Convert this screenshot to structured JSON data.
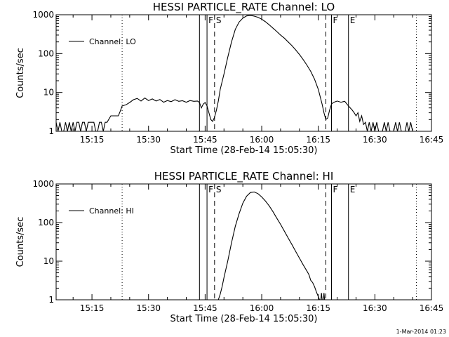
{
  "footer_timestamp": "1-Mar-2014 01:23",
  "chart_data": [
    {
      "type": "line",
      "title": "HESSI PARTICLE_RATE Channel: LO",
      "xlabel": "Start Time (28-Feb-14 15:05:30)",
      "ylabel": "Counts/sec",
      "yscale": "log",
      "xlim": [
        "15:05:30",
        "16:45:00"
      ],
      "ylim": [
        1,
        1000
      ],
      "x_tick_labels": [
        "15:15",
        "15:30",
        "15:45",
        "16:00",
        "16:15",
        "16:30",
        "16:45"
      ],
      "y_tick_labels": [
        "1",
        "10",
        "100",
        "1000"
      ],
      "legend": {
        "position": "top-left",
        "entries": [
          "Channel: LO"
        ]
      },
      "markers": [
        {
          "time": "15:23:00",
          "style": "dotted",
          "label": ""
        },
        {
          "time": "15:43:30",
          "style": "solid",
          "label": ""
        },
        {
          "time": "15:45:30",
          "style": "solid",
          "label": "F"
        },
        {
          "time": "15:47:30",
          "style": "dashed",
          "label": "S"
        },
        {
          "time": "16:17:00",
          "style": "dashed",
          "label": ""
        },
        {
          "time": "16:18:30",
          "style": "solid",
          "label": "F"
        },
        {
          "time": "16:23:00",
          "style": "solid",
          "label": "E"
        },
        {
          "time": "16:41:00",
          "style": "dotted",
          "label": ""
        }
      ],
      "series": [
        {
          "name": "Channel: LO",
          "segments": [
            [
              [
                "15:05:30",
                1.7
              ],
              [
                "15:06:00",
                1
              ],
              [
                "15:06:30",
                1.7
              ],
              [
                "15:07:00",
                1
              ],
              [
                "15:07:30",
                1
              ],
              [
                "15:08:00",
                1.7
              ],
              [
                "15:08:30",
                1
              ],
              [
                "15:09:00",
                1.7
              ],
              [
                "15:09:30",
                1
              ],
              [
                "15:10:00",
                1.7
              ],
              [
                "15:10:30",
                1
              ],
              [
                "15:11:00",
                1.7
              ],
              [
                "15:11:30",
                1.7
              ],
              [
                "15:12:00",
                1
              ],
              [
                "15:12:30",
                1.7
              ],
              [
                "15:13:00",
                1.7
              ],
              [
                "15:13:30",
                1
              ],
              [
                "15:14:00",
                1.7
              ],
              [
                "15:14:30",
                1.7
              ],
              [
                "15:15:00",
                1.7
              ],
              [
                "15:15:30",
                1.7
              ],
              [
                "15:16:00",
                1
              ],
              [
                "15:16:30",
                1
              ],
              [
                "15:17:00",
                1.7
              ],
              [
                "15:17:30",
                1.7
              ],
              [
                "15:18:00",
                1
              ],
              [
                "15:18:30",
                1.7
              ],
              [
                "15:19:00",
                1.7
              ],
              [
                "15:20:00",
                2.5
              ],
              [
                "15:21:00",
                2.5
              ],
              [
                "15:22:00",
                2.5
              ],
              [
                "15:22:30",
                3.3
              ],
              [
                "15:23:00",
                4.5
              ],
              [
                "15:24:00",
                4.8
              ],
              [
                "15:25:00",
                5.5
              ],
              [
                "15:26:00",
                6.5
              ],
              [
                "15:27:00",
                7
              ],
              [
                "15:28:00",
                6
              ],
              [
                "15:29:00",
                7.2
              ],
              [
                "15:30:00",
                6.2
              ],
              [
                "15:31:00",
                6.8
              ],
              [
                "15:32:00",
                6
              ],
              [
                "15:33:00",
                6.6
              ],
              [
                "15:34:00",
                5.6
              ],
              [
                "15:35:00",
                6.2
              ],
              [
                "15:36:00",
                5.8
              ],
              [
                "15:37:00",
                6.5
              ],
              [
                "15:38:00",
                5.9
              ],
              [
                "15:39:00",
                6.1
              ],
              [
                "15:40:00",
                5.6
              ],
              [
                "15:41:00",
                6.2
              ],
              [
                "15:42:00",
                5.9
              ],
              [
                "15:43:00",
                6
              ],
              [
                "15:43:30",
                5.5
              ],
              [
                "15:44:00",
                4
              ],
              [
                "15:44:30",
                5
              ],
              [
                "15:45:00",
                5.5
              ],
              [
                "15:45:30",
                4.5
              ],
              [
                "15:46:00",
                3
              ],
              [
                "15:46:30",
                2
              ],
              [
                "15:47:00",
                1.8
              ],
              [
                "15:47:30",
                2.3
              ],
              [
                "15:48:00",
                3.5
              ],
              [
                "15:48:30",
                6
              ],
              [
                "15:49:00",
                12
              ],
              [
                "15:50:00",
                30
              ],
              [
                "15:51:00",
                80
              ],
              [
                "15:52:00",
                200
              ],
              [
                "15:53:00",
                420
              ],
              [
                "15:54:00",
                650
              ],
              [
                "15:55:00",
                820
              ],
              [
                "15:56:00",
                930
              ],
              [
                "15:57:00",
                960
              ],
              [
                "15:58:00",
                920
              ],
              [
                "15:59:00",
                860
              ],
              [
                "16:00:00",
                770
              ],
              [
                "16:01:00",
                660
              ],
              [
                "16:02:00",
                550
              ],
              [
                "16:03:00",
                450
              ],
              [
                "16:04:00",
                370
              ],
              [
                "16:05:00",
                300
              ],
              [
                "16:06:00",
                250
              ],
              [
                "16:07:00",
                200
              ],
              [
                "16:08:00",
                160
              ],
              [
                "16:09:00",
                125
              ],
              [
                "16:10:00",
                95
              ],
              [
                "16:11:00",
                70
              ],
              [
                "16:12:00",
                50
              ],
              [
                "16:13:00",
                35
              ],
              [
                "16:14:00",
                22
              ],
              [
                "16:15:00",
                12
              ],
              [
                "16:16:00",
                5
              ],
              [
                "16:16:30",
                3
              ],
              [
                "16:17:00",
                2
              ],
              [
                "16:17:30",
                2.2
              ],
              [
                "16:18:00",
                3.5
              ],
              [
                "16:18:30",
                5
              ],
              [
                "16:19:00",
                5.5
              ],
              [
                "16:20:00",
                6
              ],
              [
                "16:21:00",
                5.6
              ],
              [
                "16:22:00",
                5.9
              ],
              [
                "16:23:00",
                4.5
              ],
              [
                "16:24:00",
                3.5
              ],
              [
                "16:24:30",
                3
              ],
              [
                "16:25:00",
                2.5
              ],
              [
                "16:25:30",
                3
              ],
              [
                "16:26:00",
                1.8
              ],
              [
                "16:26:30",
                2.5
              ],
              [
                "16:27:00",
                1.5
              ],
              [
                "16:27:30",
                1.7
              ],
              [
                "16:28:00",
                1
              ],
              [
                "16:28:30",
                1.7
              ],
              [
                "16:29:00",
                1
              ],
              [
                "16:29:30",
                1.7
              ],
              [
                "16:30:00",
                1
              ],
              [
                "16:30:30",
                1.7
              ],
              [
                "16:31:00",
                1
              ],
              [
                "16:32:00",
                1
              ],
              [
                "16:32:30",
                1.7
              ],
              [
                "16:33:00",
                1
              ],
              [
                "16:33:30",
                1.7
              ],
              [
                "16:34:00",
                1
              ],
              [
                "16:35:00",
                1
              ],
              [
                "16:35:30",
                1.7
              ],
              [
                "16:36:00",
                1
              ],
              [
                "16:36:30",
                1.7
              ],
              [
                "16:37:00",
                1
              ],
              [
                "16:38:00",
                1
              ],
              [
                "16:38:30",
                1.7
              ],
              [
                "16:39:00",
                1
              ],
              [
                "16:39:30",
                1.7
              ],
              [
                "16:40:00",
                1
              ]
            ]
          ]
        }
      ]
    },
    {
      "type": "line",
      "title": "HESSI PARTICLE_RATE Channel: HI",
      "xlabel": "Start Time (28-Feb-14 15:05:30)",
      "ylabel": "Counts/sec",
      "yscale": "log",
      "xlim": [
        "15:05:30",
        "16:45:00"
      ],
      "ylim": [
        1,
        1000
      ],
      "x_tick_labels": [
        "15:15",
        "15:30",
        "15:45",
        "16:00",
        "16:15",
        "16:30",
        "16:45"
      ],
      "y_tick_labels": [
        "1",
        "10",
        "100",
        "1000"
      ],
      "legend": {
        "position": "top-left",
        "entries": [
          "Channel: HI"
        ]
      },
      "markers": [
        {
          "time": "15:23:00",
          "style": "dotted",
          "label": ""
        },
        {
          "time": "15:43:30",
          "style": "solid",
          "label": ""
        },
        {
          "time": "15:45:30",
          "style": "solid",
          "label": "F"
        },
        {
          "time": "15:47:30",
          "style": "dashed",
          "label": "S"
        },
        {
          "time": "16:17:00",
          "style": "dashed",
          "label": ""
        },
        {
          "time": "16:18:30",
          "style": "solid",
          "label": "F"
        },
        {
          "time": "16:23:00",
          "style": "solid",
          "label": "E"
        },
        {
          "time": "16:41:00",
          "style": "dotted",
          "label": ""
        }
      ],
      "series": [
        {
          "name": "Channel: HI",
          "segments": [
            [
              [
                "15:48:30",
                1
              ],
              [
                "15:49:00",
                1.4
              ],
              [
                "15:49:30",
                2.2
              ],
              [
                "15:50:00",
                3.8
              ],
              [
                "15:51:00",
                10
              ],
              [
                "15:52:00",
                30
              ],
              [
                "15:53:00",
                80
              ],
              [
                "15:54:00",
                170
              ],
              [
                "15:55:00",
                320
              ],
              [
                "15:56:00",
                480
              ],
              [
                "15:57:00",
                600
              ],
              [
                "15:58:00",
                620
              ],
              [
                "15:59:00",
                560
              ],
              [
                "16:00:00",
                460
              ],
              [
                "16:01:00",
                360
              ],
              [
                "16:02:00",
                270
              ],
              [
                "16:03:00",
                190
              ],
              [
                "16:04:00",
                130
              ],
              [
                "16:05:00",
                90
              ],
              [
                "16:06:00",
                60
              ],
              [
                "16:07:00",
                40
              ],
              [
                "16:08:00",
                27
              ],
              [
                "16:09:00",
                18
              ],
              [
                "16:10:00",
                12
              ],
              [
                "16:11:00",
                8
              ],
              [
                "16:12:00",
                5.5
              ],
              [
                "16:12:30",
                4.5
              ],
              [
                "16:13:00",
                3.2
              ],
              [
                "16:13:30",
                2.8
              ],
              [
                "16:14:00",
                2.2
              ],
              [
                "16:14:30",
                1.6
              ],
              [
                "16:15:00",
                1.2
              ],
              [
                "16:15:20",
                1
              ]
            ],
            [
              [
                "16:15:40",
                1
              ],
              [
                "16:15:50",
                1.5
              ],
              [
                "16:16:00",
                1
              ]
            ],
            [
              [
                "16:16:20",
                1
              ],
              [
                "16:16:30",
                1.5
              ],
              [
                "16:16:40",
                1
              ]
            ]
          ]
        }
      ]
    }
  ]
}
